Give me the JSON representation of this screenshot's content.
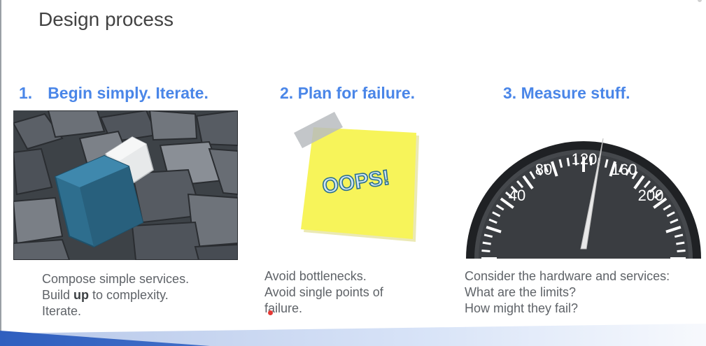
{
  "slide": {
    "title": "Design process",
    "columns": [
      {
        "heading_number": "1.",
        "heading_text": "Begin simply. Iterate.",
        "image": "gray-bricks-with-blue-brick",
        "body": [
          {
            "pre": "Compose simple services.",
            "bold": "",
            "post": ""
          },
          {
            "pre": "Build ",
            "bold": "up",
            "post": " to complexity."
          },
          {
            "pre": "Iterate.",
            "bold": "",
            "post": ""
          }
        ]
      },
      {
        "heading_text": "2. Plan for failure.",
        "image": "yellow-sticky-note",
        "note_text": "OOPS!",
        "body": [
          "Avoid bottlenecks.",
          "Avoid single points of",
          "failure."
        ]
      },
      {
        "heading_text": "3. Measure stuff.",
        "image": "speedometer",
        "gauge_labels": [
          "40",
          "80",
          "120",
          "160",
          "200"
        ],
        "body": [
          "Consider the hardware and services:",
          "What are the limits?",
          "How might they fail?"
        ]
      }
    ]
  },
  "colors": {
    "heading": "#4a86e8",
    "title": "#424242",
    "body": "#5f6368",
    "note": "#f7f45a",
    "bottom_band": "#3b6fd4",
    "cursor_dot": "#e53935"
  }
}
